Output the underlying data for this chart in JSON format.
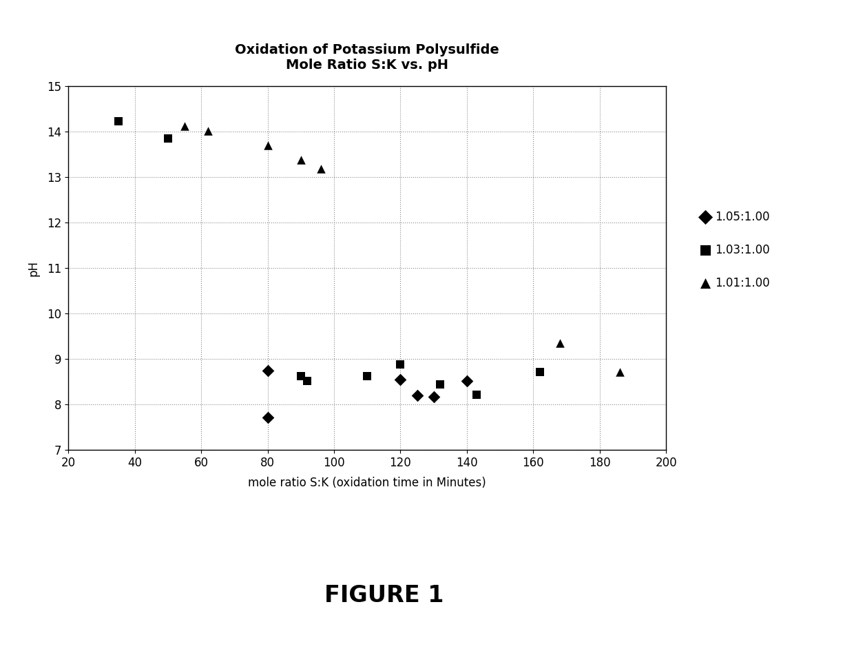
{
  "title_line1": "Oxidation of Potassium Polysulfide",
  "title_line2": "Mole Ratio S:K vs. pH",
  "xlabel": "mole ratio S:K (oxidation time in Minutes)",
  "ylabel": "pH",
  "figure_label": "FIGURE 1",
  "xlim": [
    20,
    200
  ],
  "ylim": [
    7,
    15
  ],
  "xticks": [
    20,
    40,
    60,
    80,
    100,
    120,
    140,
    160,
    180,
    200
  ],
  "yticks": [
    7,
    8,
    9,
    10,
    11,
    12,
    13,
    14,
    15
  ],
  "series": [
    {
      "label": "1.05:1.00",
      "marker": "D",
      "x": [
        80,
        80,
        120,
        125,
        130,
        140
      ],
      "y": [
        8.75,
        7.72,
        8.55,
        8.2,
        8.18,
        8.52
      ]
    },
    {
      "label": "1.03:1.00",
      "marker": "s",
      "x": [
        35,
        50,
        90,
        92,
        110,
        120,
        132,
        143,
        162
      ],
      "y": [
        14.22,
        13.85,
        8.62,
        8.52,
        8.62,
        8.88,
        8.45,
        8.22,
        8.72
      ]
    },
    {
      "label": "1.01:1.00",
      "marker": "^",
      "x": [
        55,
        62,
        80,
        90,
        96,
        168,
        186
      ],
      "y": [
        14.12,
        14.02,
        13.7,
        13.38,
        13.18,
        9.35,
        8.72
      ]
    }
  ],
  "marker_color": "#000000",
  "marker_size": 9,
  "background_color": "#ffffff",
  "grid_color": "#888888",
  "grid_linestyle": ":",
  "grid_linewidth": 0.8,
  "title_fontsize": 14,
  "axis_label_fontsize": 12,
  "tick_fontsize": 12,
  "legend_fontsize": 12,
  "figure_label_fontsize": 24
}
